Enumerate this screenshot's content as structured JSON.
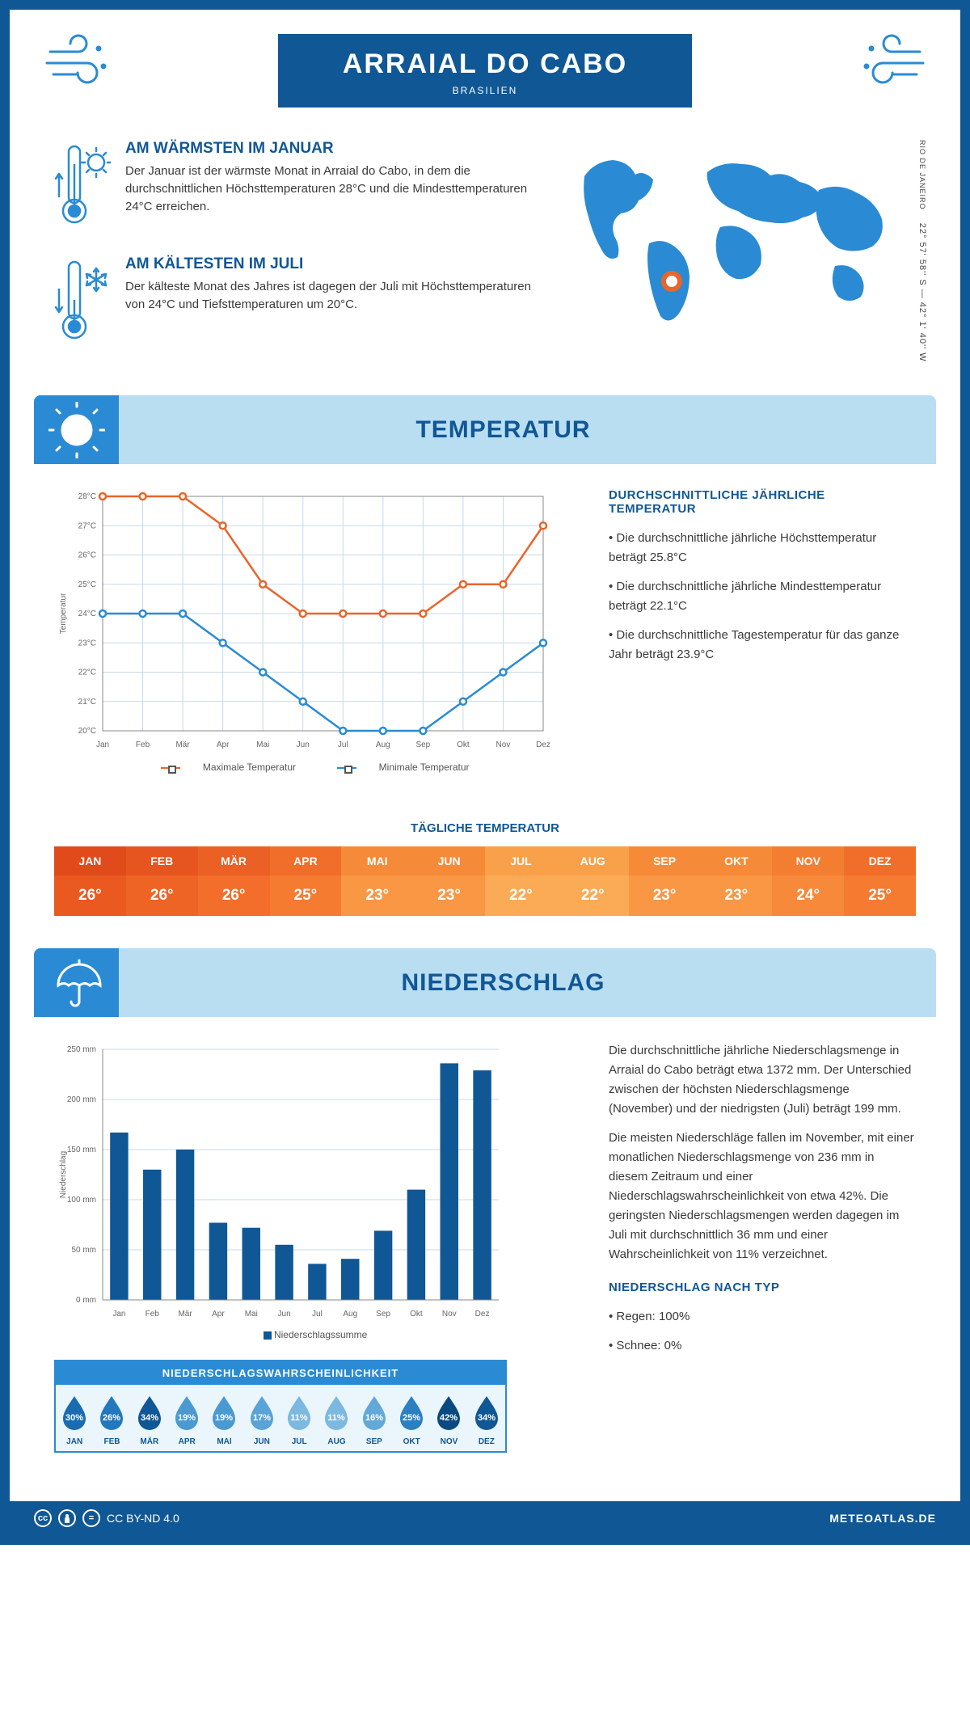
{
  "header": {
    "title": "ARRAIAL DO CABO",
    "subtitle": "BRASILIEN"
  },
  "intro": {
    "warm": {
      "heading": "AM WÄRMSTEN IM JANUAR",
      "text": "Der Januar ist der wärmste Monat in Arraial do Cabo, in dem die durchschnittlichen Höchsttemperaturen 28°C und die Mindesttemperaturen 24°C erreichen."
    },
    "cold": {
      "heading": "AM KÄLTESTEN IM JULI",
      "text": "Der kälteste Monat des Jahres ist dagegen der Juli mit Höchsttemperaturen von 24°C und Tiefsttemperaturen um 20°C."
    },
    "coords": "22° 57' 58'' S — 42° 1' 40'' W",
    "region": "RIO DE JANEIRO"
  },
  "temperature": {
    "section_title": "TEMPERATUR",
    "chart": {
      "type": "line",
      "months": [
        "Jan",
        "Feb",
        "Mär",
        "Apr",
        "Mai",
        "Jun",
        "Jul",
        "Aug",
        "Sep",
        "Okt",
        "Nov",
        "Dez"
      ],
      "max_series": [
        28,
        28,
        28,
        27,
        25,
        24,
        24,
        24,
        24,
        25,
        25,
        27
      ],
      "min_series": [
        24,
        24,
        24,
        23,
        22,
        21,
        20,
        20,
        20,
        21,
        22,
        23
      ],
      "ylim": [
        20,
        28
      ],
      "ytick_labels": [
        "20°C",
        "21°C",
        "22°C",
        "23°C",
        "24°C",
        "25°C",
        "26°C",
        "27°C",
        "28°C"
      ],
      "ylabel": "Temperatur",
      "max_color": "#e8652b",
      "min_color": "#2a8bd4",
      "grid_color": "#c9d9e8",
      "legend_max": "Maximale Temperatur",
      "legend_min": "Minimale Temperatur",
      "label_fontsize": 10
    },
    "info": {
      "heading": "DURCHSCHNITTLICHE JÄHRLICHE TEMPERATUR",
      "bullets": [
        "• Die durchschnittliche jährliche Höchsttemperatur beträgt 25.8°C",
        "• Die durchschnittliche jährliche Mindesttemperatur beträgt 22.1°C",
        "• Die durchschnittliche Tagestemperatur für das ganze Jahr beträgt 23.9°C"
      ]
    },
    "daily": {
      "title": "TÄGLICHE TEMPERATUR",
      "months": [
        "JAN",
        "FEB",
        "MÄR",
        "APR",
        "MAI",
        "JUN",
        "JUL",
        "AUG",
        "SEP",
        "OKT",
        "NOV",
        "DEZ"
      ],
      "values": [
        "26°",
        "26°",
        "26°",
        "25°",
        "23°",
        "23°",
        "22°",
        "22°",
        "23°",
        "23°",
        "24°",
        "25°"
      ],
      "head_colors": [
        "#e14a1a",
        "#e6551f",
        "#eb6024",
        "#f06e2a",
        "#f58b38",
        "#f58b38",
        "#f9a14a",
        "#f9a14a",
        "#f58b38",
        "#f58b38",
        "#f37d30",
        "#f06e2a"
      ],
      "val_colors": [
        "#ea5a20",
        "#ee6425",
        "#f26e2a",
        "#f57b31",
        "#f99745",
        "#f99745",
        "#fbaa55",
        "#fbaa55",
        "#f99745",
        "#f99745",
        "#f7893b",
        "#f57b31"
      ]
    }
  },
  "precipitation": {
    "section_title": "NIEDERSCHLAG",
    "chart": {
      "type": "bar",
      "months": [
        "Jan",
        "Feb",
        "Mär",
        "Apr",
        "Mai",
        "Jun",
        "Jul",
        "Aug",
        "Sep",
        "Okt",
        "Nov",
        "Dez"
      ],
      "values": [
        167,
        130,
        150,
        77,
        72,
        55,
        36,
        41,
        69,
        110,
        236,
        229
      ],
      "ylim": [
        0,
        250
      ],
      "ytick_step": 50,
      "ytick_labels": [
        "0 mm",
        "50 mm",
        "100 mm",
        "150 mm",
        "200 mm",
        "250 mm"
      ],
      "ylabel": "Niederschlag",
      "bar_color": "#105795",
      "grid_color": "#c9d9e8",
      "legend": "Niederschlagssumme",
      "bar_width": 0.55
    },
    "text": {
      "p1": "Die durchschnittliche jährliche Niederschlagsmenge in Arraial do Cabo beträgt etwa 1372 mm. Der Unterschied zwischen der höchsten Niederschlagsmenge (November) und der niedrigsten (Juli) beträgt 199 mm.",
      "p2": "Die meisten Niederschläge fallen im November, mit einer monatlichen Niederschlagsmenge von 236 mm in diesem Zeitraum und einer Niederschlagswahrscheinlichkeit von etwa 42%. Die geringsten Niederschlagsmengen werden dagegen im Juli mit durchschnittlich 36 mm und einer Wahrscheinlichkeit von 11% verzeichnet.",
      "type_heading": "NIEDERSCHLAG NACH TYP",
      "type_bullets": [
        "• Regen: 100%",
        "• Schnee: 0%"
      ]
    },
    "probability": {
      "title": "NIEDERSCHLAGSWAHRSCHEINLICHKEIT",
      "months": [
        "JAN",
        "FEB",
        "MÄR",
        "APR",
        "MAI",
        "JUN",
        "JUL",
        "AUG",
        "SEP",
        "OKT",
        "NOV",
        "DEZ"
      ],
      "values": [
        "30%",
        "26%",
        "34%",
        "19%",
        "19%",
        "17%",
        "11%",
        "11%",
        "16%",
        "25%",
        "42%",
        "34%"
      ],
      "drop_colors": [
        "#1a6bb0",
        "#2378bd",
        "#105795",
        "#4a99d0",
        "#4a99d0",
        "#5aa3d6",
        "#7cb8e0",
        "#7cb8e0",
        "#62a9d8",
        "#2c80c2",
        "#0b4a80",
        "#105795"
      ]
    }
  },
  "footer": {
    "license": "CC BY-ND 4.0",
    "brand": "METEOATLAS.DE"
  }
}
